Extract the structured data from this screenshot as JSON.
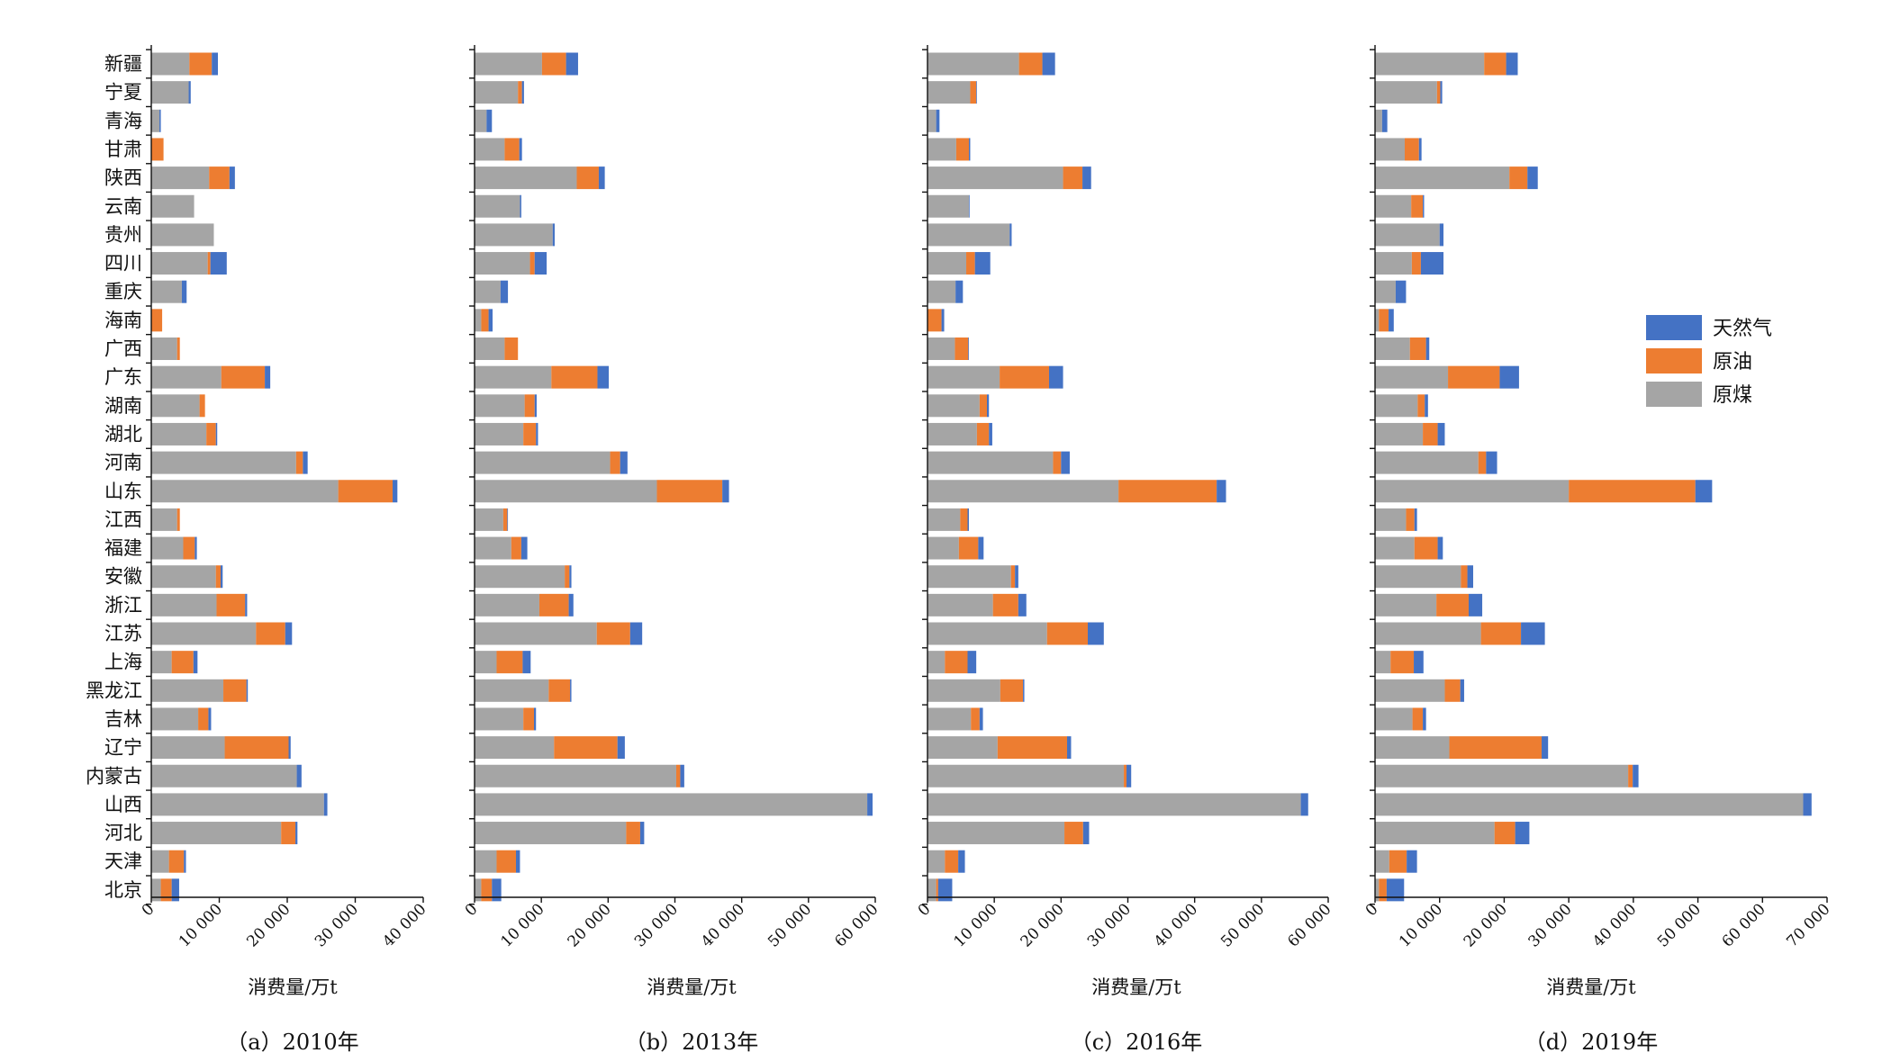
{
  "colors": {
    "gas": "#4472c4",
    "oil": "#ed7d31",
    "coal": "#a5a5a5"
  },
  "provinces": [
    "新疆",
    "宁夏",
    "青海",
    "甘肃",
    "陕西",
    "云南",
    "贵州",
    "四川",
    "重庆",
    "海南",
    "广西",
    "广东",
    "湖南",
    "湖北",
    "河南",
    "山东",
    "江西",
    "福建",
    "安徽",
    "浙江",
    "江苏",
    "上海",
    "黑龙江",
    "吉林",
    "辽宁",
    "内蒙古",
    "山西",
    "河北",
    "天津",
    "北京"
  ],
  "legend": [
    {
      "name": "天然气",
      "key": "gas"
    },
    {
      "name": "原油",
      "key": "oil"
    },
    {
      "name": "原煤",
      "key": "coal"
    }
  ],
  "chart_data": [
    {
      "type": "bar",
      "stacked": true,
      "orientation": "horizontal",
      "caption": "（a）2010年",
      "xlabel": "消费量/万t",
      "xlim": [
        0,
        40000
      ],
      "tick_labels": [
        "0",
        "10 000",
        "20 000",
        "30 000",
        "40 000"
      ],
      "series": [
        {
          "name": "原煤",
          "values": [
            5600,
            5500,
            1200,
            0,
            8500,
            6300,
            9200,
            8300,
            4500,
            0,
            3800,
            10300,
            7100,
            8100,
            21300,
            27500,
            3800,
            4700,
            9500,
            9600,
            15400,
            3000,
            10600,
            6900,
            10800,
            21400,
            25400,
            19100,
            2600,
            1400
          ]
        },
        {
          "name": "原油",
          "values": [
            3300,
            0,
            0,
            1800,
            3000,
            0,
            0,
            400,
            0,
            1600,
            400,
            6400,
            800,
            1400,
            1000,
            8000,
            400,
            1700,
            700,
            4200,
            4300,
            3200,
            3400,
            1500,
            9400,
            0,
            0,
            2100,
            2200,
            1600
          ]
        },
        {
          "name": "天然气",
          "values": [
            900,
            300,
            200,
            0,
            800,
            0,
            0,
            2400,
            700,
            0,
            0,
            800,
            0,
            200,
            700,
            700,
            0,
            300,
            300,
            300,
            1000,
            600,
            200,
            400,
            300,
            700,
            500,
            300,
            300,
            1100
          ]
        }
      ]
    },
    {
      "type": "bar",
      "stacked": true,
      "orientation": "horizontal",
      "caption": "（b）2013年",
      "xlabel": "消费量/万t",
      "xlim": [
        0,
        60000
      ],
      "tick_labels": [
        "0",
        "10 000",
        "20 000",
        "30 000",
        "40 000",
        "50 000",
        "60 000"
      ],
      "series": [
        {
          "name": "原煤",
          "values": [
            10100,
            6500,
            1800,
            4500,
            15300,
            6800,
            11700,
            8300,
            3900,
            1000,
            4500,
            11500,
            7500,
            7300,
            20300,
            27300,
            4300,
            5500,
            13500,
            9700,
            18300,
            3300,
            11100,
            7300,
            11900,
            30200,
            58800,
            22700,
            3300,
            1000
          ]
        },
        {
          "name": "原油",
          "values": [
            3600,
            600,
            0,
            2200,
            3300,
            0,
            0,
            700,
            0,
            1100,
            2000,
            6900,
            1500,
            1900,
            1500,
            9800,
            600,
            1500,
            700,
            4400,
            5000,
            3900,
            3200,
            1600,
            9500,
            600,
            0,
            2100,
            2900,
            1600
          ]
        },
        {
          "name": "天然气",
          "values": [
            1800,
            300,
            800,
            400,
            900,
            200,
            300,
            1800,
            1100,
            600,
            0,
            1700,
            300,
            300,
            1100,
            1000,
            100,
            900,
            300,
            700,
            1800,
            1200,
            200,
            300,
            1100,
            600,
            800,
            600,
            600,
            1400
          ]
        }
      ]
    },
    {
      "type": "bar",
      "stacked": true,
      "orientation": "horizontal",
      "caption": "（c）2016年",
      "xlabel": "消费量/万t",
      "xlim": [
        0,
        60000
      ],
      "tick_labels": [
        "0",
        "10 000",
        "20 000",
        "30 000",
        "40 000",
        "50 000",
        "60 000"
      ],
      "series": [
        {
          "name": "原煤",
          "values": [
            13700,
            6400,
            1300,
            4300,
            20300,
            6200,
            12300,
            5800,
            4200,
            0,
            4100,
            10800,
            7800,
            7400,
            18800,
            28600,
            4900,
            4700,
            12500,
            9800,
            17900,
            2600,
            10900,
            6500,
            10500,
            29400,
            55900,
            20500,
            2600,
            1300
          ]
        },
        {
          "name": "原油",
          "values": [
            3500,
            900,
            0,
            1900,
            2900,
            0,
            0,
            1300,
            0,
            2100,
            2000,
            7400,
            1100,
            1800,
            1200,
            14700,
            1100,
            2900,
            600,
            3800,
            6100,
            3400,
            3400,
            1300,
            10400,
            400,
            0,
            2800,
            2000,
            300
          ]
        },
        {
          "name": "天然气",
          "values": [
            1900,
            100,
            500,
            200,
            1300,
            100,
            300,
            2300,
            1100,
            400,
            100,
            2100,
            300,
            500,
            1300,
            1400,
            200,
            800,
            500,
            1200,
            2400,
            1300,
            200,
            500,
            600,
            700,
            1100,
            900,
            1000,
            2100
          ]
        }
      ]
    },
    {
      "type": "bar",
      "stacked": true,
      "orientation": "horizontal",
      "caption": "（d）2019年",
      "xlabel": "消费量/万t",
      "xlim": [
        0,
        70000
      ],
      "tick_labels": [
        "0",
        "10 000",
        "20 000",
        "30 000",
        "40 000",
        "50 000",
        "60 000",
        "70 000"
      ],
      "series": [
        {
          "name": "原煤",
          "values": [
            16900,
            9600,
            1100,
            4600,
            20800,
            5600,
            10000,
            5700,
            3200,
            600,
            5400,
            11300,
            6600,
            7400,
            16000,
            30000,
            4800,
            6100,
            13300,
            9500,
            16400,
            2400,
            10800,
            5800,
            11500,
            39200,
            66300,
            18500,
            2200,
            600
          ]
        },
        {
          "name": "原油",
          "values": [
            3400,
            500,
            0,
            2200,
            2800,
            1800,
            0,
            1400,
            0,
            1500,
            2500,
            8000,
            1100,
            2300,
            1200,
            19600,
            1300,
            3600,
            1000,
            5000,
            6200,
            3600,
            2400,
            1600,
            14300,
            700,
            0,
            3200,
            2700,
            1200
          ]
        },
        {
          "name": "天然气",
          "values": [
            1800,
            300,
            800,
            400,
            1600,
            200,
            600,
            3500,
            1600,
            800,
            500,
            3000,
            500,
            1100,
            1700,
            2600,
            400,
            800,
            900,
            2100,
            3700,
            1500,
            600,
            500,
            1000,
            900,
            1300,
            2200,
            1600,
            2700
          ]
        }
      ]
    }
  ]
}
